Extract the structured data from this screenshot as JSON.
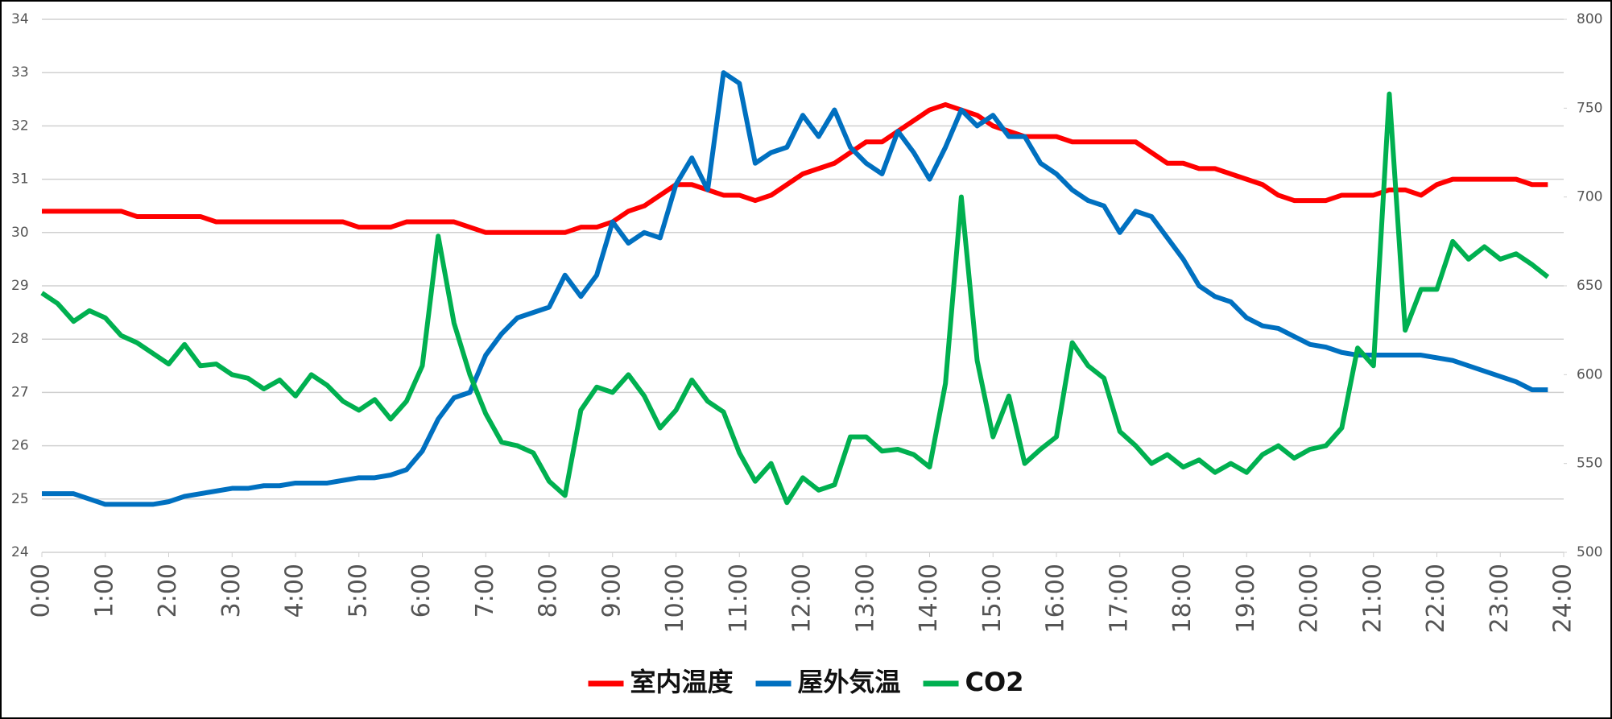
{
  "chart_data": {
    "type": "line",
    "x": [
      0,
      0.25,
      0.5,
      0.75,
      1,
      1.25,
      1.5,
      1.75,
      2,
      2.25,
      2.5,
      2.75,
      3,
      3.25,
      3.5,
      3.75,
      4,
      4.25,
      4.5,
      4.75,
      5,
      5.25,
      5.5,
      5.75,
      6,
      6.25,
      6.5,
      6.75,
      7,
      7.25,
      7.5,
      7.75,
      8,
      8.25,
      8.5,
      8.75,
      9,
      9.25,
      9.5,
      9.75,
      10,
      10.25,
      10.5,
      10.75,
      11,
      11.25,
      11.5,
      11.75,
      12,
      12.25,
      12.5,
      12.75,
      13,
      13.25,
      13.5,
      13.75,
      14,
      14.25,
      14.5,
      14.75,
      15,
      15.25,
      15.5,
      15.75,
      16,
      16.25,
      16.5,
      16.75,
      17,
      17.25,
      17.5,
      17.75,
      18,
      18.25,
      18.5,
      18.75,
      19,
      19.25,
      19.5,
      19.75,
      20,
      20.25,
      20.5,
      20.75,
      21,
      21.25,
      21.5,
      21.75,
      22,
      22.25,
      22.5,
      22.75,
      23,
      23.25,
      23.5,
      23.75
    ],
    "series": [
      {
        "name": "室内温度",
        "color": "#ff0000",
        "values": [
          30.4,
          30.4,
          30.4,
          30.4,
          30.4,
          30.4,
          30.3,
          30.3,
          30.3,
          30.3,
          30.3,
          30.2,
          30.2,
          30.2,
          30.2,
          30.2,
          30.2,
          30.2,
          30.2,
          30.2,
          30.1,
          30.1,
          30.1,
          30.2,
          30.2,
          30.2,
          30.2,
          30.1,
          30.0,
          30.0,
          30.0,
          30.0,
          30.0,
          30.0,
          30.1,
          30.1,
          30.2,
          30.4,
          30.5,
          30.7,
          30.9,
          30.9,
          30.8,
          30.7,
          30.7,
          30.6,
          30.7,
          30.9,
          31.1,
          31.2,
          31.3,
          31.5,
          31.7,
          31.7,
          31.9,
          32.1,
          32.3,
          32.4,
          32.3,
          32.2,
          32.0,
          31.9,
          31.8,
          31.8,
          31.8,
          31.7,
          31.7,
          31.7,
          31.7,
          31.7,
          31.5,
          31.3,
          31.3,
          31.2,
          31.2,
          31.1,
          31.0,
          30.9,
          30.7,
          30.6,
          30.6,
          30.6,
          30.7,
          30.7,
          30.7,
          30.8,
          30.8,
          30.7,
          30.9,
          31.0,
          31.0,
          31.0,
          31.0,
          31.0,
          30.9,
          30.9
        ]
      },
      {
        "name": "屋外気温",
        "color": "#0070c0",
        "values": [
          25.1,
          25.1,
          25.1,
          25.0,
          24.9,
          24.9,
          24.9,
          24.9,
          24.95,
          25.05,
          25.1,
          25.15,
          25.2,
          25.2,
          25.25,
          25.25,
          25.3,
          25.3,
          25.3,
          25.35,
          25.4,
          25.4,
          25.45,
          25.55,
          25.9,
          26.5,
          26.9,
          27.0,
          27.7,
          28.1,
          28.4,
          28.5,
          28.6,
          29.2,
          28.8,
          29.2,
          30.2,
          29.8,
          30.0,
          29.9,
          30.9,
          31.4,
          30.8,
          33.0,
          32.8,
          31.3,
          31.5,
          31.6,
          32.2,
          31.8,
          32.3,
          31.6,
          31.3,
          31.1,
          31.9,
          31.5,
          31.0,
          31.6,
          32.3,
          32.0,
          32.2,
          31.8,
          31.8,
          31.3,
          31.1,
          30.8,
          30.6,
          30.5,
          30.0,
          30.4,
          30.3,
          29.9,
          29.5,
          29.0,
          28.8,
          28.7,
          28.4,
          28.25,
          28.2,
          28.05,
          27.9,
          27.85,
          27.75,
          27.7,
          27.7,
          27.7,
          27.7,
          27.7,
          27.65,
          27.6,
          27.5,
          27.4,
          27.3,
          27.2,
          27.05,
          27.05
        ]
      },
      {
        "name": "CO2",
        "color": "#00b050",
        "axis": "y2",
        "values": [
          646,
          640,
          630,
          636,
          632,
          622,
          618,
          612,
          606,
          617,
          605,
          606,
          600,
          598,
          592,
          597,
          588,
          600,
          594,
          585,
          580,
          586,
          575,
          585,
          605,
          678,
          629,
          600,
          578,
          562,
          560,
          556,
          540,
          532,
          580,
          593,
          590,
          600,
          588,
          570,
          580,
          597,
          585,
          579,
          556,
          540,
          550,
          528,
          542,
          535,
          538,
          565,
          565,
          557,
          558,
          555,
          548,
          595,
          700,
          608,
          565,
          588,
          550,
          558,
          565,
          618,
          605,
          598,
          568,
          560,
          550,
          555,
          548,
          552,
          545,
          550,
          545,
          555,
          560,
          553,
          558,
          560,
          570,
          615,
          605,
          758,
          625,
          648,
          648,
          675,
          665,
          672,
          665,
          668,
          662,
          655
        ]
      }
    ],
    "xlim": [
      0,
      24
    ],
    "xticks": [
      {
        "value": 0,
        "label": "0:00"
      },
      {
        "value": 1,
        "label": "1:00"
      },
      {
        "value": 2,
        "label": "2:00"
      },
      {
        "value": 3,
        "label": "3:00"
      },
      {
        "value": 4,
        "label": "4:00"
      },
      {
        "value": 5,
        "label": "5:00"
      },
      {
        "value": 6,
        "label": "6:00"
      },
      {
        "value": 7,
        "label": "7:00"
      },
      {
        "value": 8,
        "label": "8:00"
      },
      {
        "value": 9,
        "label": "9:00"
      },
      {
        "value": 10,
        "label": "10:00"
      },
      {
        "value": 11,
        "label": "11:00"
      },
      {
        "value": 12,
        "label": "12:00"
      },
      {
        "value": 13,
        "label": "13:00"
      },
      {
        "value": 14,
        "label": "14:00"
      },
      {
        "value": 15,
        "label": "15:00"
      },
      {
        "value": 16,
        "label": "16:00"
      },
      {
        "value": 17,
        "label": "17:00"
      },
      {
        "value": 18,
        "label": "18:00"
      },
      {
        "value": 19,
        "label": "19:00"
      },
      {
        "value": 20,
        "label": "20:00"
      },
      {
        "value": 21,
        "label": "21:00"
      },
      {
        "value": 22,
        "label": "22:00"
      },
      {
        "value": 23,
        "label": "23:00"
      },
      {
        "value": 24,
        "label": "24:00"
      }
    ],
    "ylim": [
      24,
      34
    ],
    "yticks": [
      24,
      25,
      26,
      27,
      28,
      29,
      30,
      31,
      32,
      33,
      34
    ],
    "y2lim": [
      500,
      800
    ],
    "y2ticks": [
      500,
      550,
      600,
      650,
      700,
      750,
      800
    ],
    "grid": true,
    "legend": "bottom"
  }
}
